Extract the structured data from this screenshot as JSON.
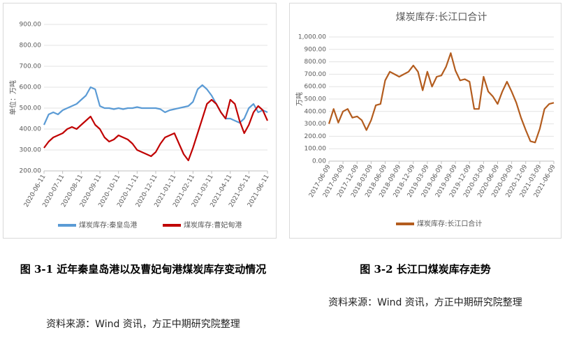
{
  "chart_data": [
    {
      "type": "line",
      "ylabel": "单位：万吨",
      "categories": [
        "2020-06-11",
        null,
        null,
        null,
        "2020-07-11",
        null,
        null,
        null,
        "2020-08-11",
        null,
        null,
        null,
        "2020-09-11",
        null,
        null,
        null,
        "2020-10-11",
        null,
        null,
        null,
        "2020-11-11",
        null,
        null,
        null,
        "2020-12-11",
        null,
        null,
        null,
        "2021-01-11",
        null,
        null,
        null,
        "2021-02-11",
        null,
        null,
        null,
        "2021-03-11",
        null,
        null,
        null,
        "2021-04-11",
        null,
        null,
        null,
        "2021-05-11",
        null,
        null,
        null,
        "2021-06-11"
      ],
      "series": [
        {
          "name": "煤炭库存:秦皇岛港",
          "color": "#5b9bd5",
          "values": [
            420,
            470,
            480,
            470,
            490,
            500,
            510,
            520,
            540,
            560,
            600,
            590,
            510,
            500,
            500,
            495,
            500,
            495,
            500,
            500,
            505,
            500,
            500,
            500,
            500,
            495,
            480,
            490,
            495,
            500,
            505,
            510,
            530,
            590,
            610,
            590,
            560,
            520,
            480,
            450,
            450,
            440,
            430,
            450,
            500,
            520,
            480,
            490,
            480
          ]
        },
        {
          "name": "煤炭库存:曹妃甸港",
          "color": "#c00000",
          "values": [
            310,
            340,
            360,
            370,
            380,
            400,
            410,
            400,
            420,
            440,
            460,
            420,
            400,
            360,
            340,
            350,
            370,
            360,
            350,
            330,
            300,
            290,
            280,
            270,
            290,
            330,
            360,
            370,
            380,
            330,
            280,
            250,
            310,
            380,
            450,
            520,
            540,
            520,
            480,
            450,
            540,
            520,
            440,
            380,
            420,
            480,
            510,
            490,
            440
          ]
        }
      ],
      "ylim": [
        200,
        900
      ],
      "yticks": [
        {
          "value": 200,
          "label": "200.00"
        },
        {
          "value": 300,
          "label": "300.00"
        },
        {
          "value": 400,
          "label": "400.00"
        },
        {
          "value": 500,
          "label": "500.00"
        },
        {
          "value": 600,
          "label": "600.00"
        },
        {
          "value": 700,
          "label": "700.00"
        },
        {
          "value": 800,
          "label": "800.00"
        },
        {
          "value": 900,
          "label": "900.00"
        }
      ],
      "grid": true
    },
    {
      "type": "line",
      "title": "煤炭库存:长江口合计",
      "ylabel": "万吨",
      "categories": [
        "2017-06-09",
        null,
        null,
        "2017-09-09",
        null,
        null,
        "2017-12-09",
        null,
        null,
        "2018-03-09",
        null,
        null,
        "2018-06-09",
        null,
        null,
        "2018-09-09",
        null,
        null,
        "2018-12-09",
        null,
        null,
        "2019-03-09",
        null,
        null,
        "2019-06-09",
        null,
        null,
        "2019-09-09",
        null,
        null,
        "2019-12-09",
        null,
        null,
        "2020-03-09",
        null,
        null,
        "2020-06-09",
        null,
        null,
        "2020-09-09",
        null,
        null,
        "2020-12-09",
        null,
        null,
        "2021-03-09",
        null,
        null,
        "2021-06-09"
      ],
      "series": [
        {
          "name": "煤炭库存:长江口合计",
          "color": "#b35c1e",
          "values": [
            300,
            420,
            310,
            400,
            420,
            350,
            360,
            330,
            250,
            330,
            450,
            460,
            650,
            720,
            700,
            680,
            700,
            720,
            770,
            720,
            570,
            720,
            600,
            680,
            690,
            760,
            870,
            730,
            650,
            660,
            640,
            420,
            420,
            680,
            560,
            520,
            460,
            560,
            640,
            560,
            470,
            350,
            250,
            160,
            150,
            260,
            420,
            460,
            470
          ]
        }
      ],
      "ylim": [
        0,
        1000
      ],
      "yticks": [
        {
          "value": 0,
          "label": "0.00"
        },
        {
          "value": 100,
          "label": "100.00"
        },
        {
          "value": 200,
          "label": "200.00"
        },
        {
          "value": 300,
          "label": "300.00"
        },
        {
          "value": 400,
          "label": "400.00"
        },
        {
          "value": 500,
          "label": "500.00"
        },
        {
          "value": 600,
          "label": "600.00"
        },
        {
          "value": 700,
          "label": "700.00"
        },
        {
          "value": 800,
          "label": "800.00"
        },
        {
          "value": 900,
          "label": "900.00"
        },
        {
          "value": 1000,
          "label": "1,000.00"
        }
      ],
      "grid": true
    }
  ],
  "captions": [
    {
      "title": "图 3-1 近年秦皇岛港以及曹妃甸港煤炭库存变动情况",
      "source": "资料来源：Wind 资讯，方正中期研究院整理"
    },
    {
      "title": "图 3-2 长江口煤炭库存走势",
      "source": "资料来源：Wind 资讯，方正中期研究院整理"
    }
  ]
}
